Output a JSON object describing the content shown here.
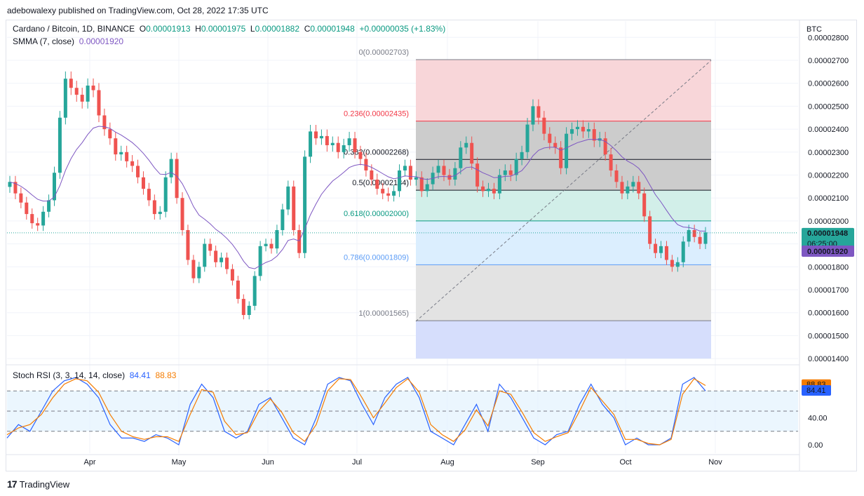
{
  "header": {
    "publisher_line": "adebowalexy published on TradingView.com, Oct 28, 2022 17:35 UTC"
  },
  "legend": {
    "symbol": "Cardano / Bitcoin, 1D, BINANCE",
    "o_label": "O",
    "o_value": "0.00001913",
    "h_label": "H",
    "h_value": "0.00001975",
    "l_label": "L",
    "l_value": "0.00001882",
    "c_label": "C",
    "c_value": "0.00001948",
    "change": "+0.00000035 (+1.83%)",
    "smma_label": "SMMA (7, close)",
    "smma_value": "0.00001920",
    "rsi_label": "Stoch RSI (3, 3, 14, 14, close)",
    "rsi_k": "84.41",
    "rsi_d": "88.83"
  },
  "footer": {
    "brand": "TradingView"
  },
  "colors": {
    "up": "#26a69a",
    "down": "#ef5350",
    "smma": "#7e57c2",
    "k_line": "#2962ff",
    "d_line": "#f57c00"
  },
  "chart_data": [
    {
      "type": "candlestick",
      "title": "Cardano / Bitcoin, 1D, BINANCE",
      "currency": "BTC",
      "ylim": [
        1.4e-05,
        2.8e-05
      ],
      "y_ticks": [
        "0.00001400",
        "0.00001500",
        "0.00001600",
        "0.00001700",
        "0.00001800",
        "0.00002000",
        "0.00002100",
        "0.00002200",
        "0.00002300",
        "0.00002400",
        "0.00002500",
        "0.00002600",
        "0.00002700",
        "0.00002800"
      ],
      "x_ticks": [
        "Apr",
        "May",
        "Jun",
        "Jul",
        "Aug",
        "Sep",
        "Oct",
        "Nov"
      ],
      "last_price": "0.00001948",
      "countdown": "06:25:00",
      "smma_last": "0.00001920",
      "close_series": [
        2.17e-05,
        2.12e-05,
        2.08e-05,
        2.03e-05,
        1.99e-05,
        1.98e-05,
        2.04e-05,
        2.09e-05,
        2.21e-05,
        2.45e-05,
        2.62e-05,
        2.58e-05,
        2.55e-05,
        2.52e-05,
        2.59e-05,
        2.57e-05,
        2.46e-05,
        2.4e-05,
        2.36e-05,
        2.29e-05,
        2.3e-05,
        2.26e-05,
        2.24e-05,
        2.19e-05,
        2.14e-05,
        2.09e-05,
        2.03e-05,
        2.04e-05,
        2.19e-05,
        2.27e-05,
        2.1e-05,
        1.96e-05,
        1.83e-05,
        1.75e-05,
        1.8e-05,
        1.9e-05,
        1.87e-05,
        1.82e-05,
        1.84e-05,
        1.79e-05,
        1.74e-05,
        1.66e-05,
        1.59e-05,
        1.63e-05,
        1.76e-05,
        1.89e-05,
        1.9e-05,
        1.88e-05,
        1.96e-05,
        2.05e-05,
        2.15e-05,
        1.96e-05,
        1.86e-05,
        2.28e-05,
        2.39e-05,
        2.36e-05,
        2.37e-05,
        2.33e-05,
        2.34e-05,
        2.3e-05,
        2.33e-05,
        2.36e-05,
        2.3e-05,
        2.27e-05,
        2.22e-05,
        2.18e-05,
        2.14e-05,
        2.12e-05,
        2.11e-05,
        2.13e-05,
        2.22e-05,
        2.24e-05,
        2.18e-05,
        2.19e-05,
        2.13e-05,
        2.16e-05,
        2.21e-05,
        2.24e-05,
        2.2e-05,
        2.18e-05,
        2.23e-05,
        2.32e-05,
        2.34e-05,
        2.25e-05,
        2.15e-05,
        2.13e-05,
        2.14e-05,
        2.12e-05,
        2.2e-05,
        2.22e-05,
        2.2e-05,
        2.27e-05,
        2.3e-05,
        2.42e-05,
        2.5e-05,
        2.45e-05,
        2.38e-05,
        2.34e-05,
        2.32e-05,
        2.23e-05,
        2.38e-05,
        2.4e-05,
        2.41e-05,
        2.39e-05,
        2.4e-05,
        2.35e-05,
        2.36e-05,
        2.29e-05,
        2.22e-05,
        2.17e-05,
        2.12e-05,
        2.15e-05,
        2.17e-05,
        2.12e-05,
        2.02e-05,
        1.9e-05,
        1.86e-05,
        1.89e-05,
        1.83e-05,
        1.8e-05,
        1.82e-05,
        1.91e-05,
        1.96e-05,
        1.93e-05,
        1.9e-05,
        1.95e-05
      ],
      "fibonacci": [
        {
          "level": "0",
          "price": "0.00002703",
          "label": "0(0.00002703)",
          "color": "#787b86"
        },
        {
          "level": "0.236",
          "price": "0.00002435",
          "label": "0.236(0.00002435)",
          "color": "#f23645"
        },
        {
          "level": "0.382",
          "price": "0.00002268",
          "label": "0.382(0.00002268)",
          "color": "#131722"
        },
        {
          "level": "0.5",
          "price": "0.00002134",
          "label": "0.5(0.00002134)",
          "color": "#131722"
        },
        {
          "level": "0.618",
          "price": "0.00002000",
          "label": "0.618(0.00002000)",
          "color": "#089981"
        },
        {
          "level": "0.786",
          "price": "0.00001809",
          "label": "0.786(0.00001809)",
          "color": "#5b9cf6"
        },
        {
          "level": "1",
          "price": "0.00001565",
          "label": "1(0.00001565)",
          "color": "#787b86"
        }
      ]
    },
    {
      "type": "line",
      "title": "Stoch RSI (3, 3, 14, 14, close)",
      "ylim": [
        0,
        100
      ],
      "y_ticks": [
        "0.00",
        "40.00"
      ],
      "bands": [
        20,
        80
      ],
      "series": [
        {
          "name": "%K",
          "last": "84.41",
          "values": [
            10,
            30,
            20,
            50,
            80,
            95,
            100,
            90,
            70,
            30,
            10,
            10,
            5,
            15,
            10,
            0,
            60,
            90,
            70,
            20,
            10,
            20,
            60,
            70,
            40,
            10,
            0,
            40,
            90,
            100,
            95,
            60,
            30,
            70,
            90,
            100,
            70,
            20,
            10,
            0,
            30,
            60,
            20,
            90,
            70,
            40,
            10,
            0,
            15,
            20,
            60,
            90,
            60,
            40,
            0,
            10,
            0,
            0,
            10,
            90,
            100,
            80
          ]
        },
        {
          "name": "%D",
          "last": "88.83",
          "values": [
            15,
            25,
            30,
            45,
            70,
            90,
            98,
            95,
            78,
            45,
            20,
            12,
            8,
            12,
            12,
            5,
            45,
            82,
            78,
            35,
            15,
            18,
            50,
            68,
            48,
            18,
            5,
            30,
            80,
            98,
            97,
            70,
            40,
            62,
            85,
            98,
            78,
            30,
            15,
            5,
            22,
            52,
            28,
            80,
            75,
            48,
            18,
            5,
            12,
            18,
            50,
            85,
            65,
            45,
            8,
            8,
            2,
            0,
            8,
            75,
            98,
            88
          ]
        }
      ]
    }
  ]
}
